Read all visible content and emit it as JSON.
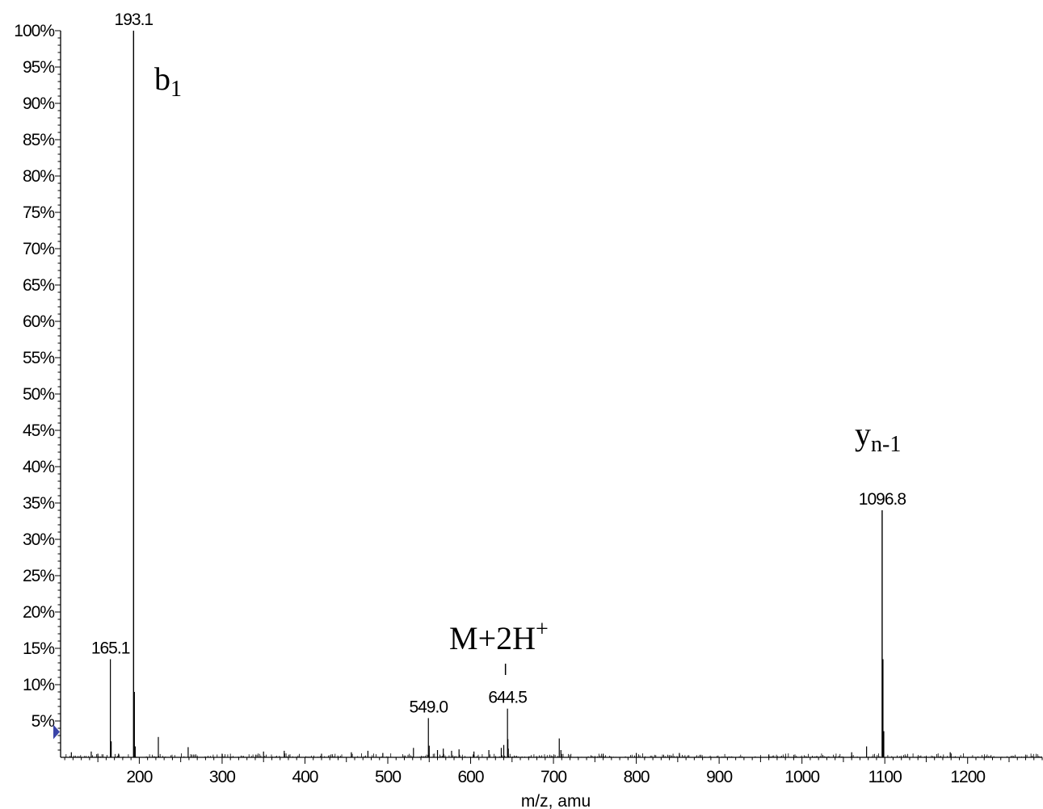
{
  "chart_data": {
    "type": "bar",
    "xlabel": "m/z, amu",
    "ylabel": "",
    "xlim": [
      105,
      1290
    ],
    "ylim": [
      0,
      100
    ],
    "x_ticks": [
      200,
      300,
      400,
      500,
      600,
      700,
      800,
      900,
      1000,
      1100,
      1200
    ],
    "y_ticks": [
      {
        "value": 5,
        "label": "5%"
      },
      {
        "value": 10,
        "label": "10%"
      },
      {
        "value": 15,
        "label": "15%"
      },
      {
        "value": 20,
        "label": "20%"
      },
      {
        "value": 25,
        "label": "25%"
      },
      {
        "value": 30,
        "label": "30%"
      },
      {
        "value": 35,
        "label": "35%"
      },
      {
        "value": 40,
        "label": "40%"
      },
      {
        "value": 45,
        "label": "45%"
      },
      {
        "value": 50,
        "label": "50%"
      },
      {
        "value": 55,
        "label": "55%"
      },
      {
        "value": 60,
        "label": "60%"
      },
      {
        "value": 65,
        "label": "65%"
      },
      {
        "value": 70,
        "label": "70%"
      },
      {
        "value": 75,
        "label": "75%"
      },
      {
        "value": 80,
        "label": "80%"
      },
      {
        "value": 85,
        "label": "85%"
      },
      {
        "value": 90,
        "label": "90%"
      },
      {
        "value": 95,
        "label": "95%"
      },
      {
        "value": 100,
        "label": "100%"
      }
    ],
    "peaks": [
      {
        "mz": 118,
        "intensity": 0.7
      },
      {
        "mz": 142,
        "intensity": 0.8
      },
      {
        "mz": 150,
        "intensity": 0.5
      },
      {
        "mz": 165.1,
        "intensity": 13.5,
        "label": "165.1"
      },
      {
        "mz": 166.1,
        "intensity": 2.2
      },
      {
        "mz": 175,
        "intensity": 0.5
      },
      {
        "mz": 193.1,
        "intensity": 100,
        "label": "193.1"
      },
      {
        "mz": 194.1,
        "intensity": 9
      },
      {
        "mz": 195.1,
        "intensity": 1.5
      },
      {
        "mz": 223,
        "intensity": 2.8
      },
      {
        "mz": 259,
        "intensity": 1.4
      },
      {
        "mz": 300,
        "intensity": 0.5
      },
      {
        "mz": 350,
        "intensity": 0.8
      },
      {
        "mz": 375,
        "intensity": 0.9
      },
      {
        "mz": 420,
        "intensity": 0.5
      },
      {
        "mz": 456,
        "intensity": 0.7
      },
      {
        "mz": 476,
        "intensity": 0.9
      },
      {
        "mz": 494,
        "intensity": 0.6
      },
      {
        "mz": 531,
        "intensity": 1.3
      },
      {
        "mz": 549.0,
        "intensity": 5.4,
        "label": "549.0"
      },
      {
        "mz": 550.0,
        "intensity": 1.6
      },
      {
        "mz": 560,
        "intensity": 1.0
      },
      {
        "mz": 567,
        "intensity": 1.2
      },
      {
        "mz": 577,
        "intensity": 0.9
      },
      {
        "mz": 586,
        "intensity": 1.1
      },
      {
        "mz": 604,
        "intensity": 0.8
      },
      {
        "mz": 622,
        "intensity": 1.0
      },
      {
        "mz": 637,
        "intensity": 1.3
      },
      {
        "mz": 640,
        "intensity": 1.7
      },
      {
        "mz": 644.5,
        "intensity": 6.7,
        "label": "644.5"
      },
      {
        "mz": 645.0,
        "intensity": 2.5
      },
      {
        "mz": 645.5,
        "intensity": 1.2
      },
      {
        "mz": 707,
        "intensity": 2.6
      },
      {
        "mz": 709,
        "intensity": 1.0
      },
      {
        "mz": 760,
        "intensity": 0.5
      },
      {
        "mz": 800,
        "intensity": 0.6
      },
      {
        "mz": 852,
        "intensity": 0.6
      },
      {
        "mz": 960,
        "intensity": 0.4
      },
      {
        "mz": 1060,
        "intensity": 0.7
      },
      {
        "mz": 1078,
        "intensity": 1.5
      },
      {
        "mz": 1096.8,
        "intensity": 34,
        "label": "1096.8"
      },
      {
        "mz": 1097.8,
        "intensity": 13.5
      },
      {
        "mz": 1098.8,
        "intensity": 3.6
      },
      {
        "mz": 1179,
        "intensity": 0.7
      }
    ],
    "annotations": [
      {
        "id": "b1",
        "base": "b",
        "sub": "1",
        "sup": "",
        "mz": 193.1
      },
      {
        "id": "yn1",
        "base": "y",
        "sub": "n-1",
        "sup": "",
        "mz": 1096.8
      },
      {
        "id": "m2h",
        "base": "M+2H",
        "sub": "",
        "sup": "+",
        "mz": 644.5
      }
    ],
    "threshold_marker": {
      "value": 3.5,
      "color": "#3a44a8"
    }
  }
}
